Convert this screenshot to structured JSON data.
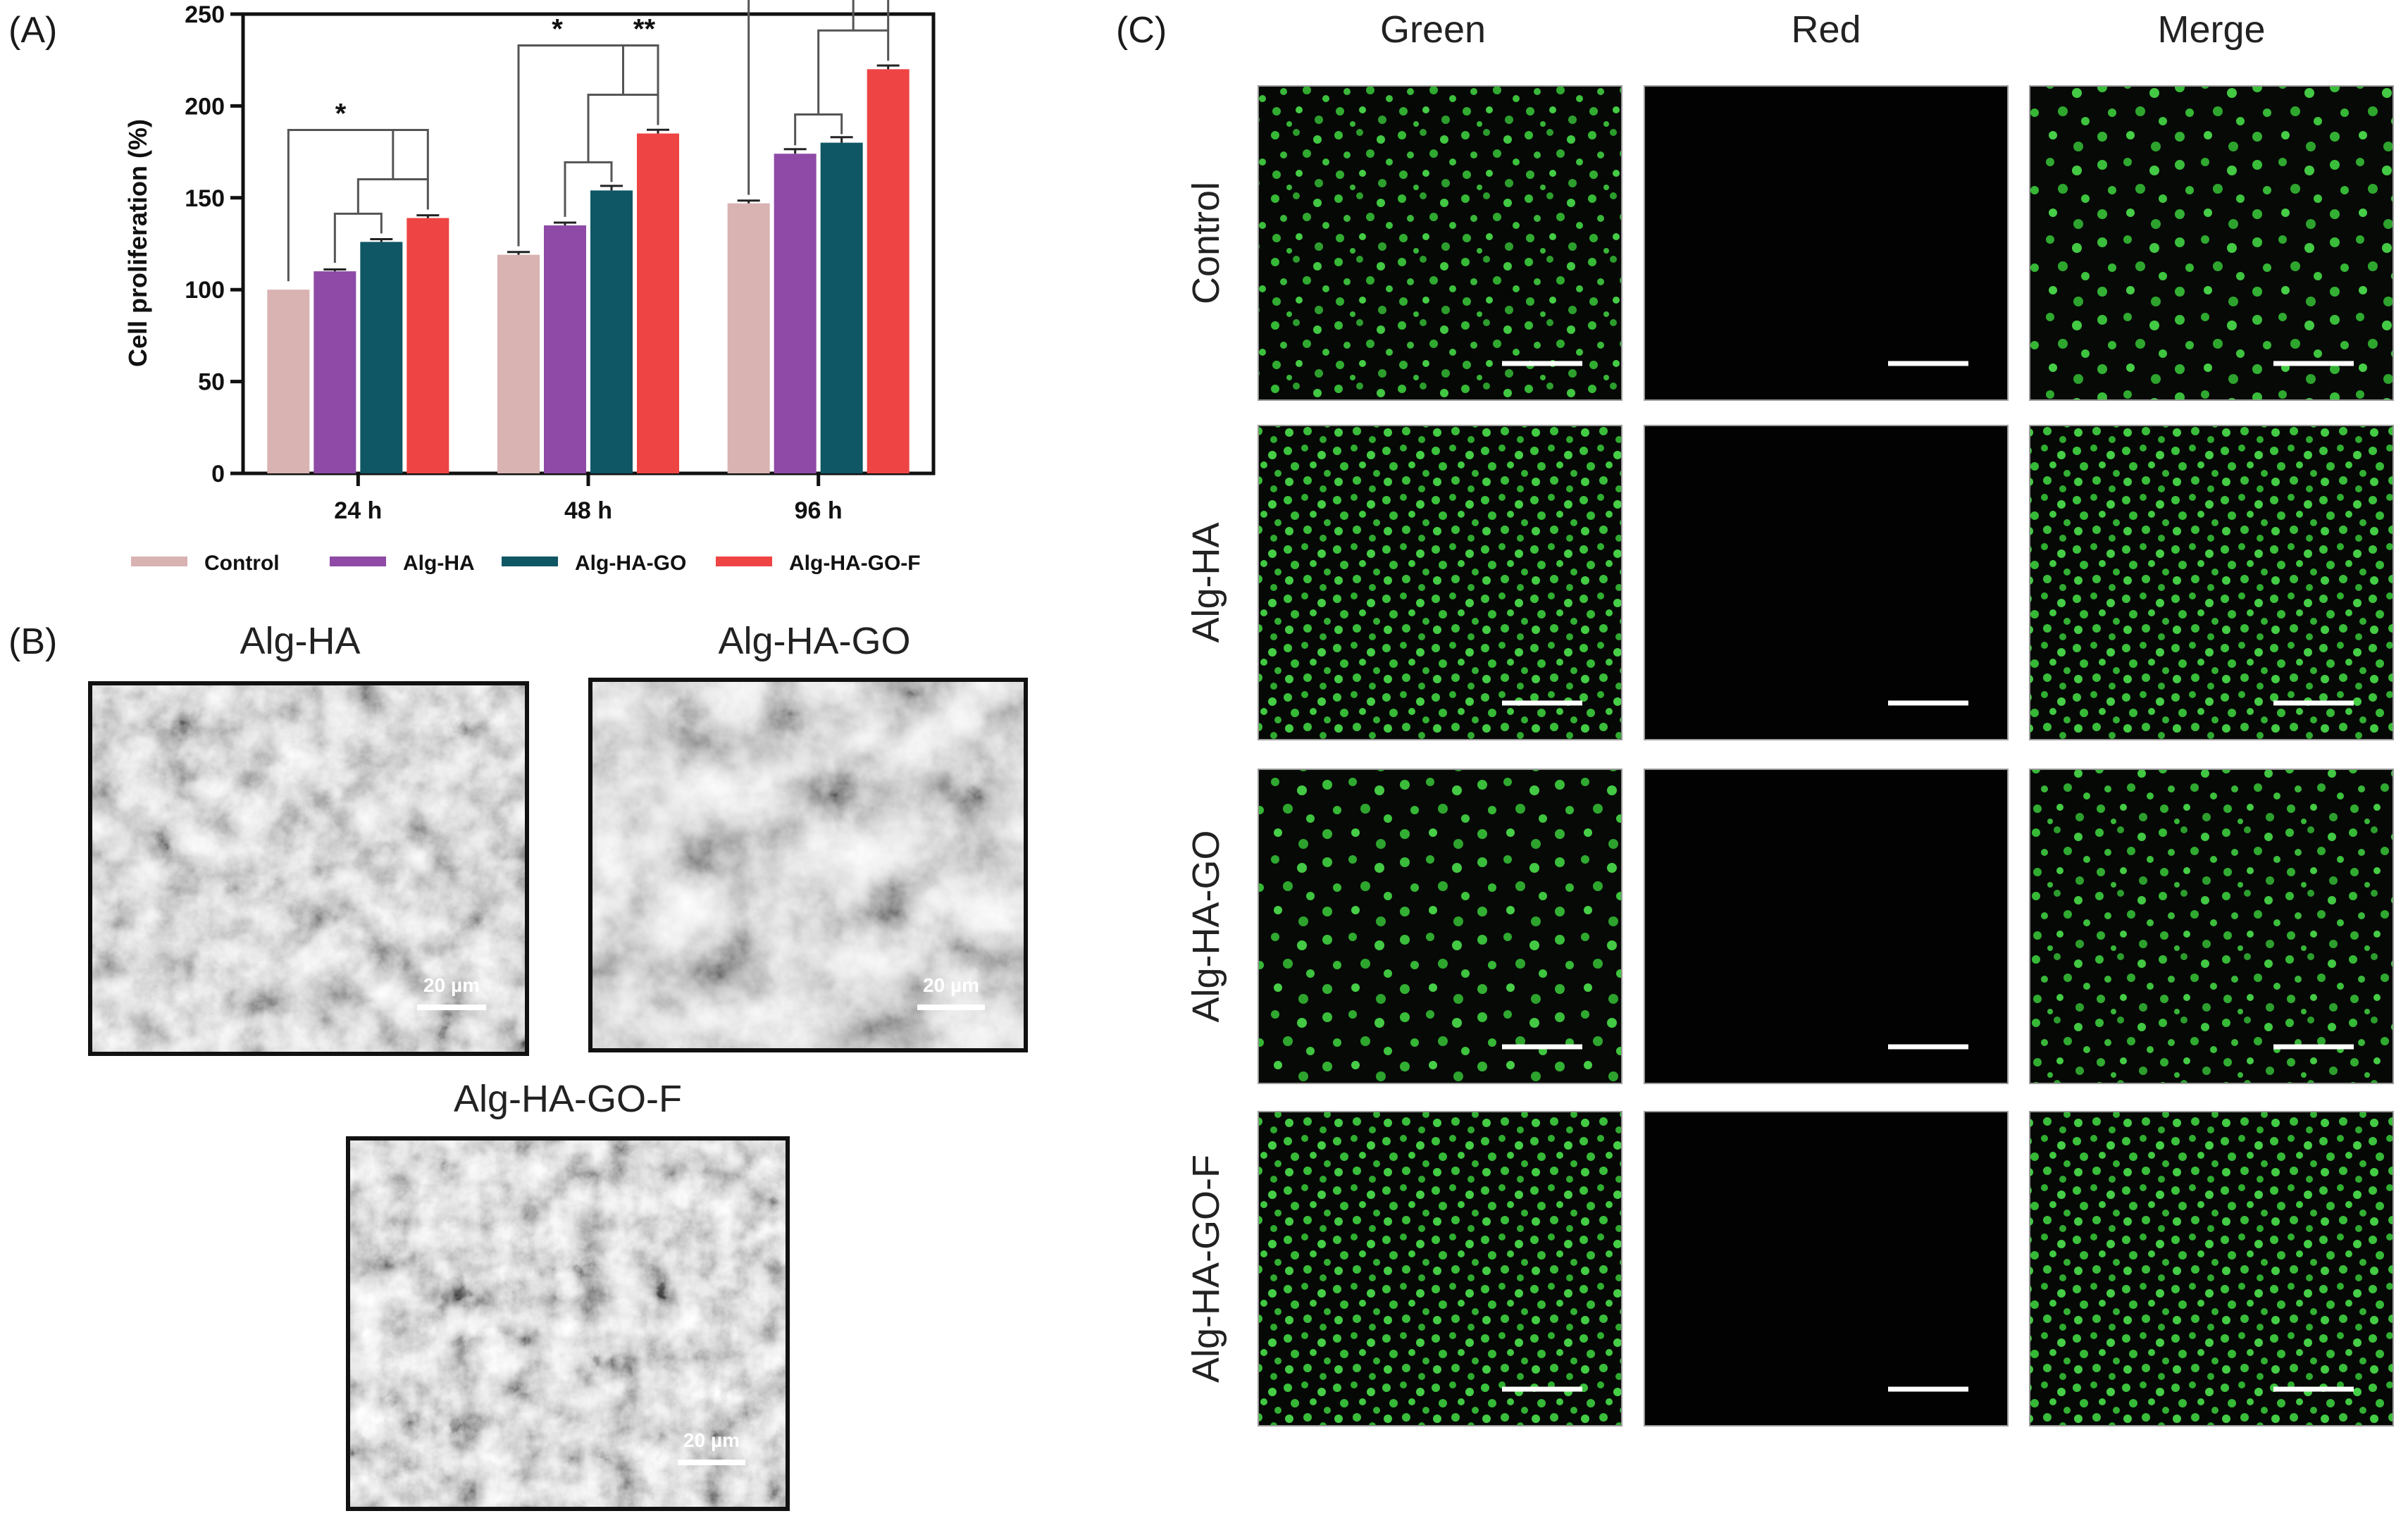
{
  "panel_labels": {
    "a": "(A)",
    "b": "(B)",
    "c": "(C)"
  },
  "colors": {
    "Control": "#d9b2b2",
    "Alg-HA": "#8e4aa6",
    "Alg-HA-GO": "#0f5765",
    "Alg-HA-GO-F": "#ef4444",
    "live": "#3ac23a",
    "sem": "#6e6e6e"
  },
  "chart_data": {
    "type": "bar",
    "title": "",
    "xlabel": "",
    "ylabel": "Cell proliferation (%)",
    "ylim": [
      0,
      250
    ],
    "yticks": [
      0,
      50,
      100,
      150,
      200,
      250
    ],
    "categories": [
      "24 h",
      "48 h",
      "96 h"
    ],
    "series": [
      {
        "name": "Control",
        "values": [
          100,
          119,
          147
        ],
        "errors": [
          0,
          1.5,
          1.5
        ]
      },
      {
        "name": "Alg-HA",
        "values": [
          110,
          135,
          174
        ],
        "errors": [
          1,
          1.5,
          2.5
        ]
      },
      {
        "name": "Alg-HA-GO",
        "values": [
          126,
          154,
          180
        ],
        "errors": [
          1.5,
          2.5,
          3
        ]
      },
      {
        "name": "Alg-HA-GO-F",
        "values": [
          139,
          185,
          220
        ],
        "errors": [
          1.5,
          2,
          2
        ]
      }
    ],
    "legend_position": "bottom",
    "significance": {
      "24 h": [
        "*"
      ],
      "48 h": [
        "*",
        "**"
      ],
      "96 h": [
        "*",
        "**"
      ]
    }
  },
  "sem": {
    "panels": [
      {
        "title": "Alg-HA",
        "scale": "20 µm"
      },
      {
        "title": "Alg-HA-GO",
        "scale": "20 µm"
      },
      {
        "title": "Alg-HA-GO-F",
        "scale": "20 µm"
      }
    ]
  },
  "fluorescence": {
    "columns": [
      "Green",
      "Red",
      "Merge"
    ],
    "rows": [
      "Control",
      "Alg-HA",
      "Alg-HA-GO",
      "Alg-HA-GO-F"
    ]
  }
}
